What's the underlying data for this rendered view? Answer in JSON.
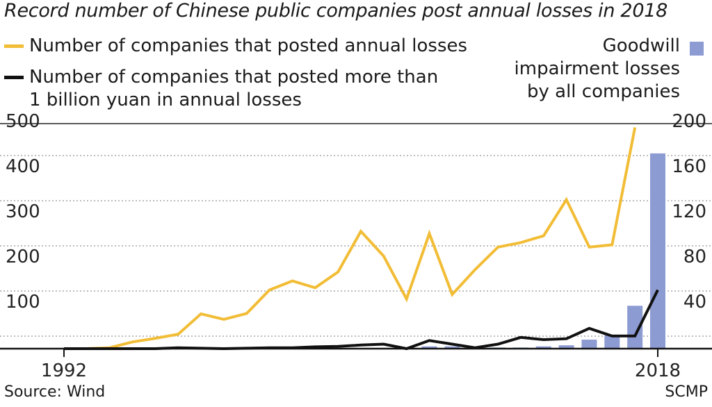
{
  "chart_data": {
    "type": "line+bar",
    "title": "Record number of Chinese public companies post annual losses in 2018",
    "x_tick_labels": [
      "1992",
      "2018"
    ],
    "y_left": {
      "ticks": [
        100,
        200,
        300,
        400,
        500
      ],
      "ylim": [
        0,
        500
      ]
    },
    "y_right": {
      "ticks": [
        40,
        80,
        120,
        160,
        200
      ],
      "ylim": [
        0,
        200
      ]
    },
    "x": [
      1992,
      1993,
      1994,
      1995,
      1996,
      1997,
      1998,
      1999,
      2000,
      2001,
      2002,
      2003,
      2004,
      2005,
      2006,
      2007,
      2008,
      2009,
      2010,
      2011,
      2012,
      2013,
      2014,
      2015,
      2016,
      2017,
      2018
    ],
    "series": [
      {
        "name": "Number of companies that posted annual losses",
        "axis": "left",
        "color": "#f2bd36",
        "kind": "line",
        "values": [
          0,
          0,
          2,
          15,
          23,
          32,
          77,
          65,
          78,
          130,
          150,
          135,
          170,
          260,
          205,
          110,
          255,
          120,
          175,
          225,
          235,
          250,
          330,
          225,
          230,
          490,
          null
        ]
      },
      {
        "name": "Number of companies that posted more than\n1 billion yuan in annual losses",
        "axis": "left",
        "color": "#111111",
        "kind": "line",
        "values": [
          0,
          0,
          0,
          0,
          0,
          2,
          1,
          0,
          1,
          2,
          2,
          4,
          5,
          8,
          10,
          0,
          18,
          10,
          2,
          10,
          25,
          20,
          22,
          45,
          28,
          28,
          130
        ]
      },
      {
        "name": "Goodwill impairment losses by all companies",
        "axis": "right",
        "color": "#8d9bd3",
        "kind": "bar",
        "values": [
          null,
          null,
          null,
          null,
          null,
          null,
          null,
          null,
          null,
          null,
          null,
          null,
          null,
          null,
          null,
          1,
          2,
          2,
          1,
          1,
          1,
          2,
          3,
          8,
          12,
          38,
          173
        ]
      }
    ],
    "legend": [
      {
        "label": "Number of companies that posted annual losses",
        "color": "#f2bd36"
      },
      {
        "label": "Number of companies that posted more than\n1 billion yuan in annual losses",
        "color": "#111111"
      }
    ],
    "goodwill_legend": {
      "label": "Goodwill\nimpairment losses\nby all companies",
      "color": "#8d9bd3"
    }
  },
  "footer": {
    "source": "Source: Wind",
    "credit": "SCMP"
  }
}
